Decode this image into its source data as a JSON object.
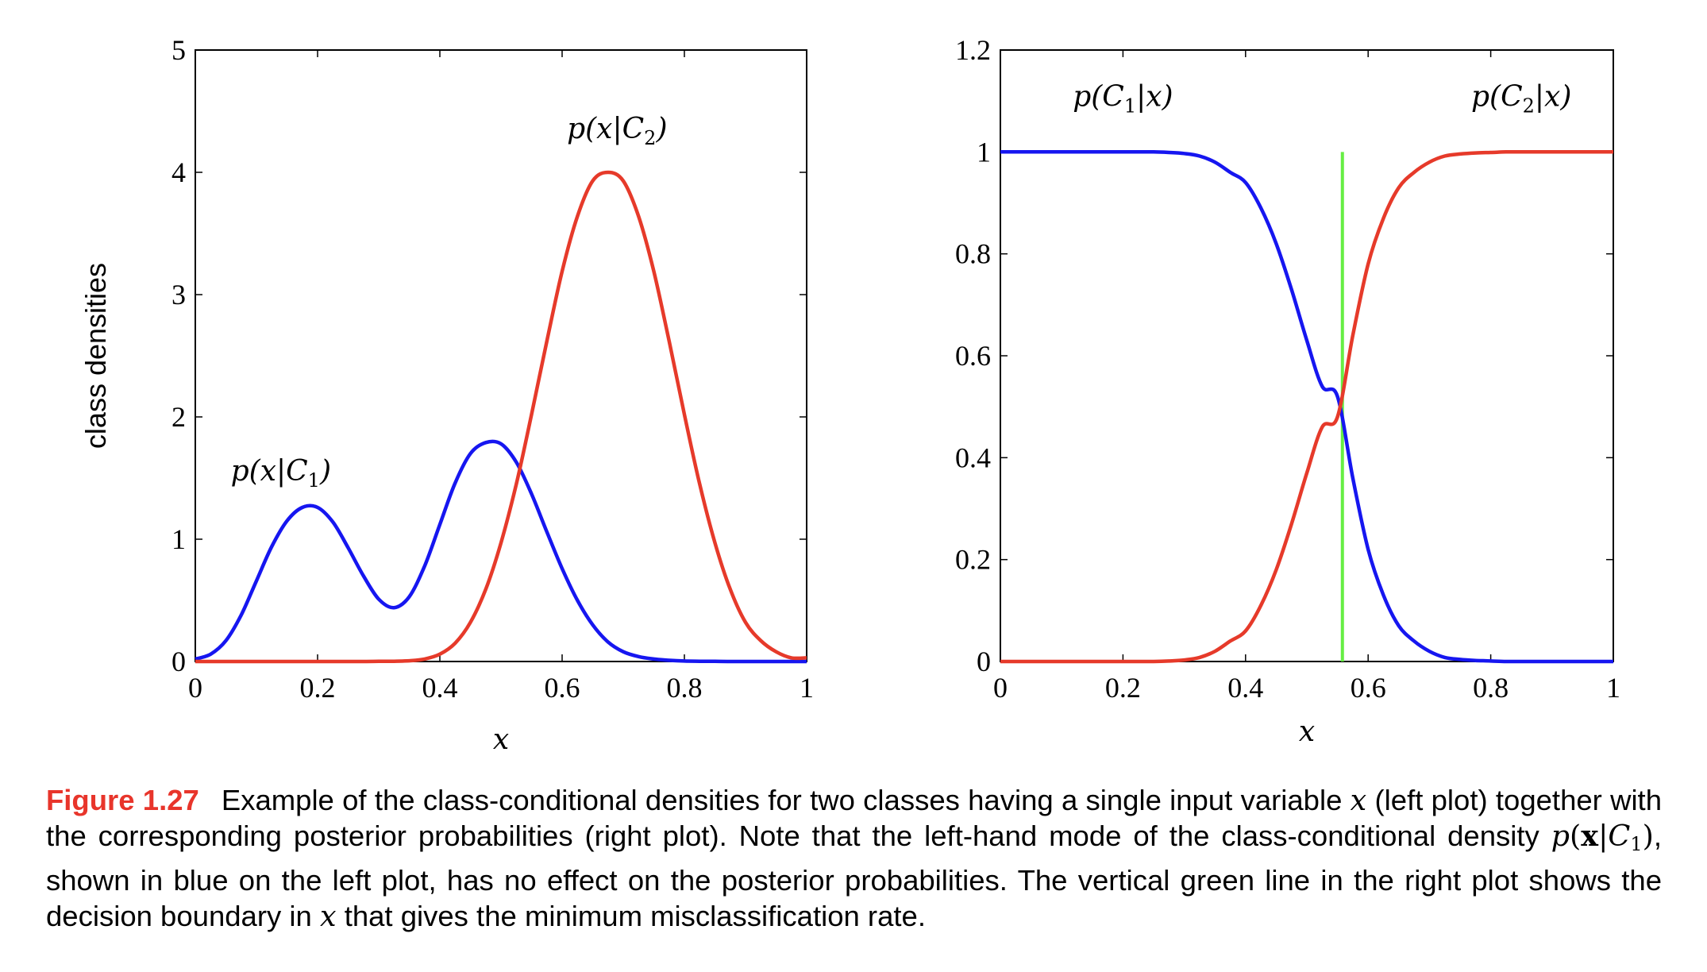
{
  "colors": {
    "blue": "#1616f0",
    "red": "#e63a2a",
    "green": "#66ee44",
    "caption_label": "#e8352b"
  },
  "chart_data": [
    {
      "type": "line",
      "panel": "left",
      "title": "",
      "xlabel": "x",
      "ylabel": "class densities",
      "xlim": [
        0,
        1
      ],
      "ylim": [
        0,
        5
      ],
      "xticks": [
        0,
        0.2,
        0.4,
        0.6,
        0.8,
        1
      ],
      "xtick_labels": [
        "0",
        "0.2",
        "0.4",
        "0.6",
        "0.8",
        "1"
      ],
      "yticks": [
        0,
        1,
        2,
        3,
        4,
        5
      ],
      "ytick_labels": [
        "0",
        "1",
        "2",
        "3",
        "4",
        "5"
      ],
      "grid": false,
      "series": [
        {
          "name": "p(x|C1)",
          "color": "#1616f0",
          "x": [
            0,
            0.025,
            0.05,
            0.075,
            0.1,
            0.125,
            0.15,
            0.175,
            0.2,
            0.225,
            0.25,
            0.275,
            0.3,
            0.325,
            0.35,
            0.375,
            0.4,
            0.425,
            0.45,
            0.475,
            0.5,
            0.525,
            0.55,
            0.575,
            0.6,
            0.625,
            0.65,
            0.675,
            0.7,
            0.725,
            0.75,
            0.775,
            0.8,
            0.825,
            0.85,
            0.875,
            0.9,
            0.925,
            0.95,
            0.975,
            1
          ],
          "y": [
            0.02,
            0.06,
            0.17,
            0.38,
            0.66,
            0.94,
            1.15,
            1.26,
            1.26,
            1.14,
            0.93,
            0.7,
            0.51,
            0.44,
            0.53,
            0.78,
            1.12,
            1.46,
            1.7,
            1.79,
            1.78,
            1.63,
            1.37,
            1.06,
            0.76,
            0.5,
            0.3,
            0.16,
            0.08,
            0.04,
            0.02,
            0.01,
            0.004,
            0.002,
            0.001,
            0,
            0,
            0,
            0,
            0,
            0
          ]
        },
        {
          "name": "p(x|C2)",
          "color": "#e63a2a",
          "x": [
            0,
            0.025,
            0.05,
            0.075,
            0.1,
            0.125,
            0.15,
            0.175,
            0.2,
            0.225,
            0.25,
            0.275,
            0.3,
            0.325,
            0.35,
            0.375,
            0.4,
            0.425,
            0.45,
            0.475,
            0.5,
            0.525,
            0.55,
            0.575,
            0.6,
            0.625,
            0.65,
            0.675,
            0.7,
            0.725,
            0.75,
            0.775,
            0.8,
            0.825,
            0.85,
            0.875,
            0.9,
            0.925,
            0.95,
            0.975,
            1
          ],
          "y": [
            0,
            0,
            0,
            0,
            0,
            0,
            0,
            0,
            0,
            0,
            0,
            0,
            0.001,
            0.002,
            0.006,
            0.02,
            0.06,
            0.15,
            0.32,
            0.59,
            0.97,
            1.45,
            2.02,
            2.62,
            3.19,
            3.64,
            3.93,
            4.0,
            3.93,
            3.64,
            3.19,
            2.62,
            2.02,
            1.45,
            0.97,
            0.59,
            0.32,
            0.17,
            0.08,
            0.03,
            0.03
          ]
        }
      ],
      "annotations": [
        {
          "prefix": "p(x|",
          "script": "C",
          "sub": "1",
          "suffix": ")",
          "x": 0.14,
          "y": 1.48
        },
        {
          "prefix": "p(x|",
          "script": "C",
          "sub": "2",
          "suffix": ")",
          "x": 0.69,
          "y": 4.28
        }
      ]
    },
    {
      "type": "line",
      "panel": "right",
      "title": "",
      "xlabel": "x",
      "ylabel": "",
      "xlim": [
        0,
        1
      ],
      "ylim": [
        0,
        1.2
      ],
      "xticks": [
        0,
        0.2,
        0.4,
        0.6,
        0.8,
        1
      ],
      "xtick_labels": [
        "0",
        "0.2",
        "0.4",
        "0.6",
        "0.8",
        "1"
      ],
      "yticks": [
        0,
        0.2,
        0.4,
        0.6,
        0.8,
        1,
        1.2
      ],
      "ytick_labels": [
        "0",
        "0.2",
        "0.4",
        "0.6",
        "0.8",
        "1",
        "1.2"
      ],
      "grid": false,
      "decision_boundary": {
        "x": 0.558,
        "y_from": 0,
        "y_to": 1.0,
        "color": "#66ee44"
      },
      "series": [
        {
          "name": "p(C1|x)",
          "color": "#1616f0",
          "x": [
            0,
            0.025,
            0.05,
            0.075,
            0.1,
            0.125,
            0.15,
            0.175,
            0.2,
            0.225,
            0.25,
            0.275,
            0.3,
            0.325,
            0.35,
            0.375,
            0.4,
            0.425,
            0.45,
            0.475,
            0.5,
            0.525,
            0.55,
            0.575,
            0.6,
            0.625,
            0.65,
            0.675,
            0.7,
            0.725,
            0.75,
            0.775,
            0.8,
            0.825,
            0.85,
            0.875,
            0.9,
            0.925,
            0.95,
            0.975,
            1
          ],
          "y": [
            1,
            1,
            1,
            1,
            1,
            1,
            1,
            1,
            1,
            1,
            1,
            0.999,
            0.997,
            0.992,
            0.98,
            0.96,
            0.94,
            0.89,
            0.82,
            0.73,
            0.63,
            0.54,
            0.52,
            0.36,
            0.22,
            0.13,
            0.07,
            0.04,
            0.02,
            0.008,
            0.004,
            0.002,
            0.001,
            0,
            0,
            0,
            0,
            0,
            0,
            0,
            0
          ]
        },
        {
          "name": "p(C2|x)",
          "color": "#e63a2a",
          "x": [
            0,
            0.025,
            0.05,
            0.075,
            0.1,
            0.125,
            0.15,
            0.175,
            0.2,
            0.225,
            0.25,
            0.275,
            0.3,
            0.325,
            0.35,
            0.375,
            0.4,
            0.425,
            0.45,
            0.475,
            0.5,
            0.525,
            0.55,
            0.575,
            0.6,
            0.625,
            0.65,
            0.675,
            0.7,
            0.725,
            0.75,
            0.775,
            0.8,
            0.825,
            0.85,
            0.875,
            0.9,
            0.925,
            0.95,
            0.975,
            1
          ],
          "y": [
            0,
            0,
            0,
            0,
            0,
            0,
            0,
            0,
            0,
            0,
            0,
            0.001,
            0.003,
            0.008,
            0.02,
            0.04,
            0.06,
            0.11,
            0.18,
            0.27,
            0.37,
            0.46,
            0.48,
            0.64,
            0.78,
            0.87,
            0.93,
            0.96,
            0.98,
            0.992,
            0.996,
            0.998,
            0.999,
            1,
            1,
            1,
            1,
            1,
            1,
            1,
            1
          ]
        }
      ],
      "annotations": [
        {
          "prefix": "p(",
          "script": "C",
          "sub": "1",
          "suffix": "|x)",
          "x": 0.2,
          "y": 1.09
        },
        {
          "prefix": "p(",
          "script": "C",
          "sub": "2",
          "suffix": "|x)",
          "x": 0.85,
          "y": 1.09
        }
      ]
    }
  ],
  "caption": {
    "label": "Figure 1.27",
    "t1": "Example of the class-conditional densities for two classes having a single input variable ",
    "v1": "x",
    "t2": " (left plot) together with the corresponding posterior probabilities (right plot).  Note that the left-hand mode of the class-conditional density ",
    "m_p": "p",
    "m_open": "(",
    "m_bold": "x",
    "m_bar": "|",
    "m_script": "C",
    "m_sub": "1",
    "m_close": ")",
    "t3": ", shown in blue on the left plot, has no effect on the posterior probabilities. The vertical green line in the right plot shows the decision boundary in ",
    "v2": "x",
    "t4": " that gives the minimum misclassification rate."
  }
}
